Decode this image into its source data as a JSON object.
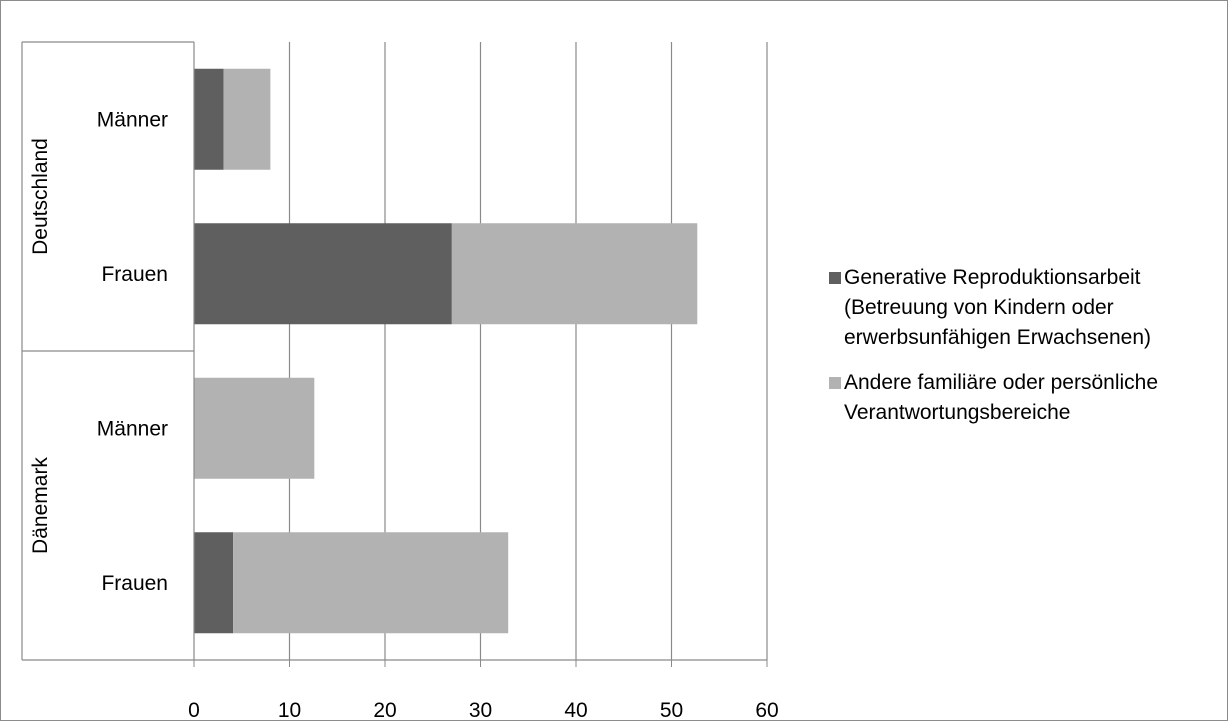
{
  "chart_data": {
    "type": "bar",
    "orientation": "horizontal",
    "stacked": true,
    "title": "",
    "xlabel": "",
    "ylabel": "",
    "xlim": [
      0,
      60
    ],
    "x_ticks": [
      0,
      10,
      20,
      30,
      40,
      50,
      60
    ],
    "grid": true,
    "legend_position": "right",
    "groups": [
      {
        "name": "Deutschland",
        "categories": [
          "Männer",
          "Frauen"
        ]
      },
      {
        "name": "Dänemark",
        "categories": [
          "Männer",
          "Frauen"
        ]
      }
    ],
    "series": [
      {
        "name": "Generative Reproduktionsarbeit (Betreuung von Kindern oder erwerbsunfähigen Erwachsenen)",
        "legend_lines": [
          "Generative Reproduktionsarbeit",
          "(Betreuung von Kindern oder",
          "erwerbsunfähigen Erwachsenen)"
        ],
        "color": "#5f5f5f",
        "values": [
          3.1,
          27.0,
          0,
          4.1
        ]
      },
      {
        "name": "Andere familiäre oder persönliche Verantwortungsbereiche",
        "legend_lines": [
          "Andere familiäre oder persönliche",
          "Verantwortungsbereiche"
        ],
        "color": "#b2b2b2",
        "values": [
          4.9,
          25.7,
          12.6,
          28.8
        ]
      }
    ]
  }
}
